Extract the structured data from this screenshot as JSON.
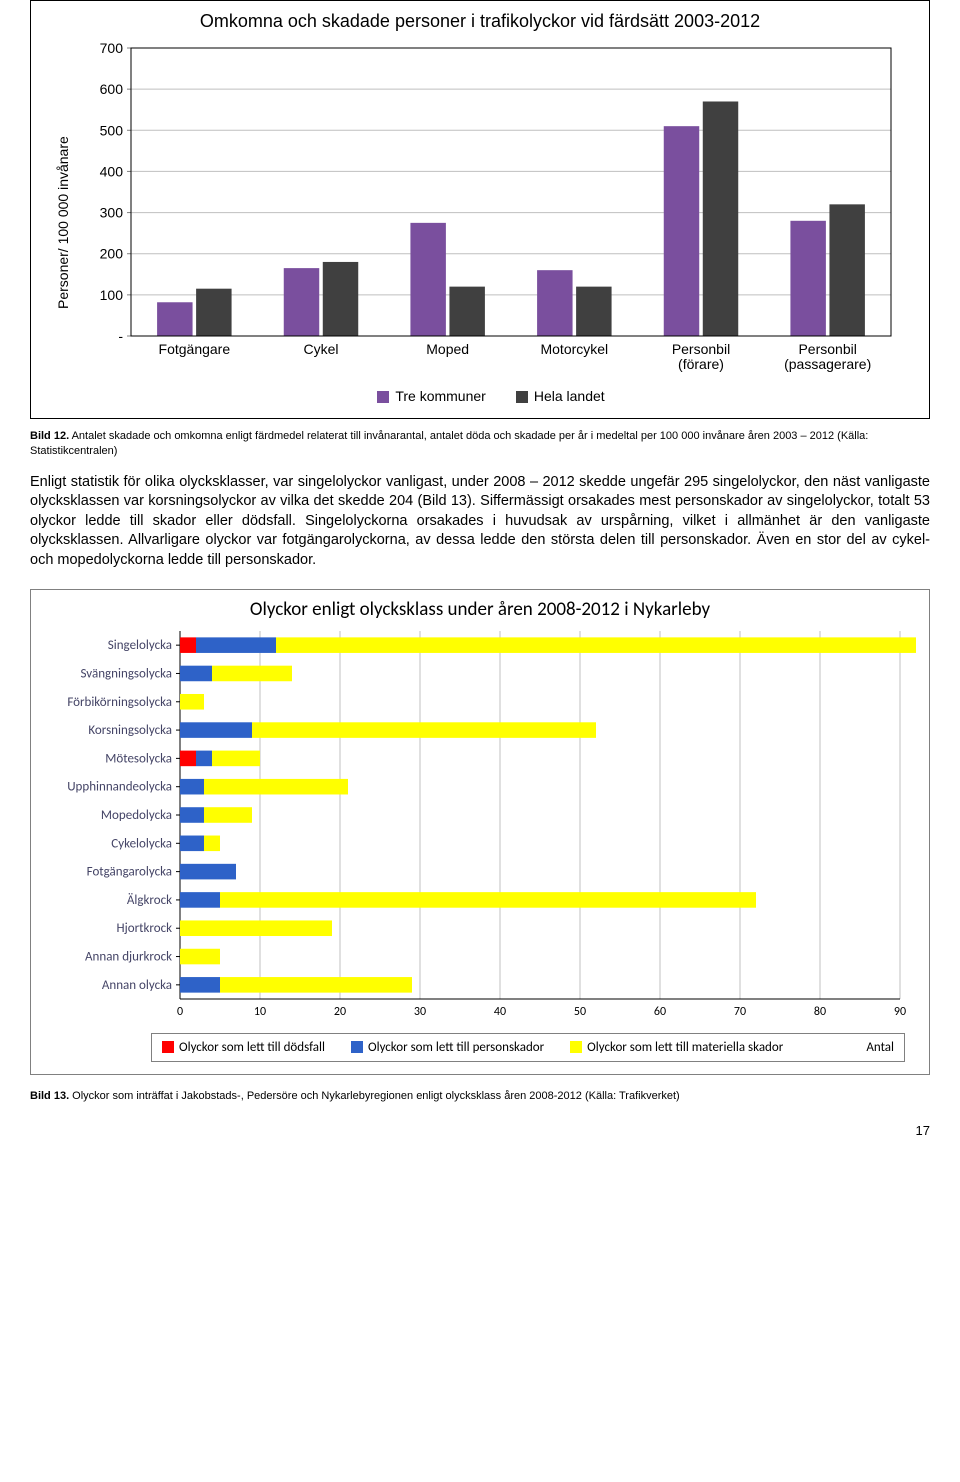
{
  "chart1": {
    "title": "Omkomna och skadade personer i trafikolyckor vid färdsätt 2003-2012",
    "yaxis_label": "Personer/ 100 000 invånare",
    "categories": [
      "Fotgängare",
      "Cykel",
      "Moped",
      "Motorcykel",
      "Personbil (förare)",
      "Personbil (passagerare)"
    ],
    "series": [
      {
        "name": "Tre kommuner",
        "color": "#7a4f9e",
        "values": [
          82,
          165,
          275,
          160,
          510,
          280
        ]
      },
      {
        "name": "Hela landet",
        "color": "#404040",
        "values": [
          115,
          180,
          120,
          120,
          570,
          320
        ]
      }
    ],
    "ylim": [
      0,
      700
    ],
    "ytick_step": 100,
    "gridline_color": "#bfbfbf",
    "axis_color": "#808080",
    "plot_outline_color": "#000000",
    "label_fontsize": 14,
    "tick_fontsize": 14,
    "title_fontsize": 18
  },
  "caption1_label": "Bild 12.",
  "caption1_text": " Antalet skadade och omkomna enligt färdmedel relaterat till invånarantal, antalet döda och skadade per år i medeltal per 100 000 invånare åren 2003 – 2012 (Källa: Statistikcentralen)",
  "body_text": "Enligt statistik för olika olycksklasser, var singelolyckor vanligast, under 2008 – 2012 skedde ungefär 295 singelolyckor, den näst vanligaste olycksklassen var korsningsolyckor av vilka det skedde 204 (Bild 13). Siffermässigt orsakades mest personskador av singelolyckor, totalt 53 olyckor ledde till skador eller dödsfall. Singelolyckorna orsakades i huvudsak av urspårning, vilket i allmänhet är den vanligaste olycksklassen. Allvarligare olyckor var fotgängarolyckorna, av dessa ledde den största delen till personskador. Även en stor del av cykel- och mopedolyckorna ledde till personskador.",
  "chart2": {
    "title": "Olyckor enligt olycksklass under åren 2008-2012 i Nykarleby",
    "categories": [
      "Singelolycka",
      "Svängningsolycka",
      "Förbikörningsolycka",
      "Korsningsolycka",
      "Mötesolycka",
      "Upphinnandeolycka",
      "Mopedolycka",
      "Cykelolycka",
      "Fotgängarolycka",
      "Älgkrock",
      "Hjortkrock",
      "Annan djurkrock",
      "Annan olycka"
    ],
    "series": [
      {
        "name": "Olyckor som lett till dödsfall",
        "color": "#ff0000",
        "values": [
          2,
          0,
          0,
          0,
          2,
          0,
          0,
          0,
          0,
          0,
          0,
          0,
          0
        ]
      },
      {
        "name": "Olyckor som lett till personskador",
        "color": "#2e62c8",
        "values": [
          10,
          4,
          0,
          9,
          2,
          3,
          3,
          3,
          7,
          5,
          0,
          0,
          5
        ]
      },
      {
        "name": "Olyckor som lett till materiella skador",
        "color": "#ffff00",
        "values": [
          80,
          10,
          3,
          43,
          6,
          18,
          6,
          2,
          0,
          67,
          19,
          5,
          24
        ]
      }
    ],
    "xlim": [
      0,
      90
    ],
    "xtick_step": 10,
    "xaxis_right_label": "Antal",
    "gridline_color": "#c0c0c0",
    "axis_color": "#000000",
    "label_fontsize": 13,
    "tick_fontsize": 12,
    "title_fontsize": 19,
    "label_color": "#444466"
  },
  "caption2_label": "Bild 13.",
  "caption2_text": " Olyckor som inträffat i Jakobstads-, Pedersöre och Nykarlebyregionen enligt olycksklass åren 2008-2012 (Källa: Trafikverket)",
  "page_number": "17"
}
